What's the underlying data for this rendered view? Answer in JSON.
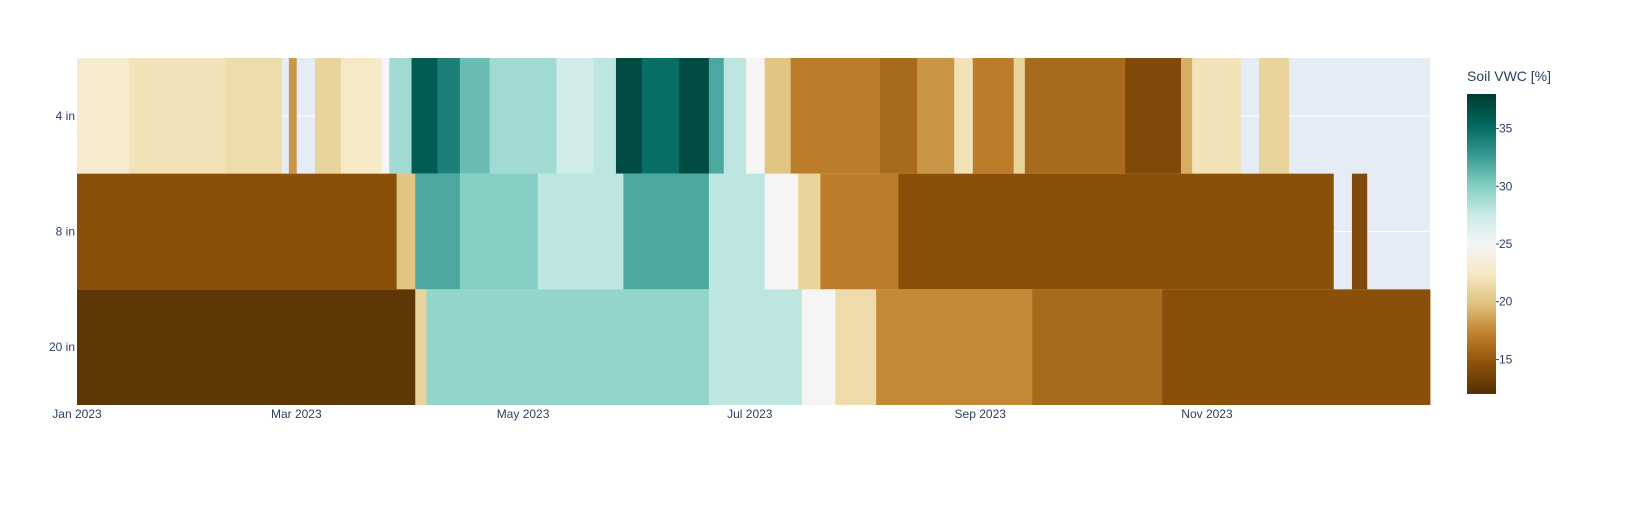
{
  "chart_data": {
    "type": "heatmap",
    "title": "",
    "xlabel": "",
    "ylabel": "",
    "colorbar_title": "Soil VWC [%]",
    "colorbar_ticks": [
      15,
      20,
      25,
      30,
      35
    ],
    "zlim": [
      12,
      38
    ],
    "colorscale": [
      "#543005",
      "#8c510a",
      "#bf812d",
      "#dfc27d",
      "#f6e8c3",
      "#f5f5f5",
      "#c7eae5",
      "#80cdc1",
      "#35978f",
      "#01665e",
      "#003c30"
    ],
    "missing_color": "#e5ecf6",
    "y_categories": [
      "4 in",
      "8 in",
      "20 in"
    ],
    "x_range": [
      "2023-01-01",
      "2023-12-31"
    ],
    "x_tick_labels": [
      {
        "date": "2023-01-01",
        "label": "Jan 2023"
      },
      {
        "date": "2023-03-01",
        "label": "Mar 2023"
      },
      {
        "date": "2023-05-01",
        "label": "May 2023"
      },
      {
        "date": "2023-07-01",
        "label": "Jul 2023"
      },
      {
        "date": "2023-09-01",
        "label": "Sep 2023"
      },
      {
        "date": "2023-11-01",
        "label": "Nov 2023"
      }
    ],
    "series": [
      {
        "name": "4 in",
        "segments": [
          {
            "start": "2023-01-01",
            "end": "2023-01-15",
            "value": 23
          },
          {
            "start": "2023-01-15",
            "end": "2023-02-10",
            "value": 22
          },
          {
            "start": "2023-02-10",
            "end": "2023-02-25",
            "value": 21.5
          },
          {
            "start": "2023-02-27",
            "end": "2023-03-01",
            "value": 18
          },
          {
            "start": "2023-03-01",
            "end": "2023-03-03",
            "value": null
          },
          {
            "start": "2023-03-06",
            "end": "2023-03-13",
            "value": 21
          },
          {
            "start": "2023-03-13",
            "end": "2023-03-24",
            "value": 22.5
          },
          {
            "start": "2023-03-24",
            "end": "2023-03-26",
            "value": 25
          },
          {
            "start": "2023-03-26",
            "end": "2023-04-01",
            "value": 29
          },
          {
            "start": "2023-04-01",
            "end": "2023-04-08",
            "value": 36
          },
          {
            "start": "2023-04-08",
            "end": "2023-04-14",
            "value": 34
          },
          {
            "start": "2023-04-14",
            "end": "2023-04-22",
            "value": 31
          },
          {
            "start": "2023-04-22",
            "end": "2023-05-10",
            "value": 29
          },
          {
            "start": "2023-05-10",
            "end": "2023-05-20",
            "value": 27
          },
          {
            "start": "2023-05-20",
            "end": "2023-05-26",
            "value": 28
          },
          {
            "start": "2023-05-26",
            "end": "2023-06-02",
            "value": 37
          },
          {
            "start": "2023-06-02",
            "end": "2023-06-12",
            "value": 35
          },
          {
            "start": "2023-06-12",
            "end": "2023-06-20",
            "value": 37
          },
          {
            "start": "2023-06-20",
            "end": "2023-06-24",
            "value": 32
          },
          {
            "start": "2023-06-24",
            "end": "2023-06-30",
            "value": 28
          },
          {
            "start": "2023-06-30",
            "end": "2023-07-05",
            "value": 25
          },
          {
            "start": "2023-07-05",
            "end": "2023-07-12",
            "value": 20
          },
          {
            "start": "2023-07-12",
            "end": "2023-08-05",
            "value": 17
          },
          {
            "start": "2023-08-05",
            "end": "2023-08-15",
            "value": 16
          },
          {
            "start": "2023-08-15",
            "end": "2023-08-25",
            "value": 18
          },
          {
            "start": "2023-08-25",
            "end": "2023-08-30",
            "value": 22
          },
          {
            "start": "2023-08-30",
            "end": "2023-09-10",
            "value": 17
          },
          {
            "start": "2023-09-10",
            "end": "2023-09-13",
            "value": 21
          },
          {
            "start": "2023-09-13",
            "end": "2023-10-10",
            "value": 16
          },
          {
            "start": "2023-10-10",
            "end": "2023-10-25",
            "value": 14
          },
          {
            "start": "2023-10-25",
            "end": "2023-10-28",
            "value": 19
          },
          {
            "start": "2023-10-28",
            "end": "2023-11-10",
            "value": 22
          },
          {
            "start": "2023-11-10",
            "end": "2023-11-15",
            "value": null
          },
          {
            "start": "2023-11-15",
            "end": "2023-11-23",
            "value": 21
          },
          {
            "start": "2023-11-23",
            "end": "2023-12-26",
            "value": null
          },
          {
            "start": "2023-12-26",
            "end": "2023-12-31",
            "value": null
          }
        ]
      },
      {
        "name": "8 in",
        "segments": [
          {
            "start": "2023-01-01",
            "end": "2023-03-28",
            "value": 14.5
          },
          {
            "start": "2023-03-28",
            "end": "2023-04-02",
            "value": 20
          },
          {
            "start": "2023-04-02",
            "end": "2023-04-14",
            "value": 32
          },
          {
            "start": "2023-04-14",
            "end": "2023-05-05",
            "value": 30
          },
          {
            "start": "2023-05-05",
            "end": "2023-05-28",
            "value": 28
          },
          {
            "start": "2023-05-28",
            "end": "2023-06-20",
            "value": 32
          },
          {
            "start": "2023-06-20",
            "end": "2023-07-05",
            "value": 28
          },
          {
            "start": "2023-07-05",
            "end": "2023-07-14",
            "value": 25
          },
          {
            "start": "2023-07-14",
            "end": "2023-07-20",
            "value": 21
          },
          {
            "start": "2023-07-20",
            "end": "2023-08-10",
            "value": 17
          },
          {
            "start": "2023-08-10",
            "end": "2023-12-05",
            "value": 14.5
          },
          {
            "start": "2023-12-05",
            "end": "2023-12-10",
            "value": null
          },
          {
            "start": "2023-12-10",
            "end": "2023-12-14",
            "value": 14
          },
          {
            "start": "2023-12-14",
            "end": "2023-12-31",
            "value": null
          }
        ]
      },
      {
        "name": "20 in",
        "segments": [
          {
            "start": "2023-01-01",
            "end": "2023-04-02",
            "value": 12.5
          },
          {
            "start": "2023-04-02",
            "end": "2023-04-05",
            "value": 21
          },
          {
            "start": "2023-04-05",
            "end": "2023-06-20",
            "value": 29.5
          },
          {
            "start": "2023-06-20",
            "end": "2023-07-15",
            "value": 28
          },
          {
            "start": "2023-07-15",
            "end": "2023-07-24",
            "value": 25
          },
          {
            "start": "2023-07-24",
            "end": "2023-08-04",
            "value": 21.5
          },
          {
            "start": "2023-08-04",
            "end": "2023-09-15",
            "value": 17.5
          },
          {
            "start": "2023-09-15",
            "end": "2023-10-20",
            "value": 16
          },
          {
            "start": "2023-10-20",
            "end": "2023-12-31",
            "value": 14.5
          }
        ]
      }
    ]
  }
}
